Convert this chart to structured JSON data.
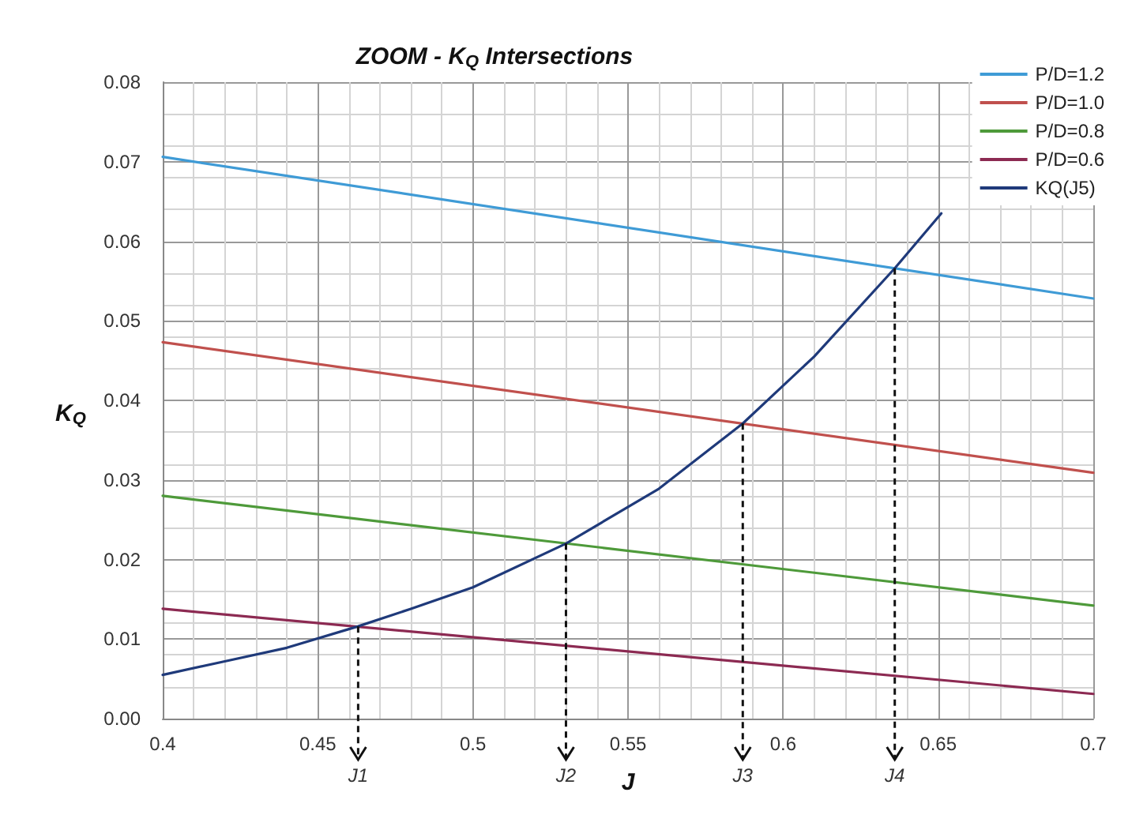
{
  "chart_data": {
    "type": "line",
    "title": "ZOOM - K$_{Q}$ Intersections",
    "xlabel": "J",
    "ylabel": "K$_{Q}$",
    "x": [
      0.4,
      0.7
    ],
    "series": [
      {
        "name": "P/D=1.2",
        "color": "#3f9bd6",
        "values": [
          0.0706,
          0.0528
        ]
      },
      {
        "name": "P/D=1.0",
        "color": "#c0504d",
        "values": [
          0.0473,
          0.0309
        ]
      },
      {
        "name": "P/D=0.8",
        "color": "#4e9a3a",
        "values": [
          0.028,
          0.0142
        ]
      },
      {
        "name": "P/D=0.6",
        "color": "#8c2a52",
        "values": [
          0.0138,
          0.0031
        ]
      },
      {
        "name": "KQ(J5)",
        "color": "#1f3a7a",
        "x": [
          0.4,
          0.42,
          0.44,
          0.463,
          0.48,
          0.5,
          0.53,
          0.56,
          0.587,
          0.61,
          0.636,
          0.651
        ],
        "values": [
          0.0055,
          0.0072,
          0.0089,
          0.0116,
          0.0138,
          0.0165,
          0.022,
          0.0289,
          0.0371,
          0.0455,
          0.0566,
          0.0635
        ]
      }
    ],
    "annotations": [
      {
        "text": "J1",
        "x": 0.463,
        "y": 0.0116
      },
      {
        "text": "J2",
        "x": 0.53,
        "y": 0.022
      },
      {
        "text": "J3",
        "x": 0.587,
        "y": 0.0371
      },
      {
        "text": "J4",
        "x": 0.636,
        "y": 0.0566
      }
    ],
    "xlim": [
      0.4,
      0.7
    ],
    "xticks": [
      0.4,
      0.45,
      0.5,
      0.55,
      0.6,
      0.65,
      0.7
    ],
    "ylim": [
      0,
      0.08
    ],
    "yticks": [
      {
        "value": 0,
        "label": "0.00"
      },
      {
        "value": 0.01,
        "label": "0.01"
      },
      {
        "value": 0.02,
        "label": "0.02"
      },
      {
        "value": 0.03,
        "label": "0.03"
      },
      {
        "value": 0.04,
        "label": "0.04"
      },
      {
        "value": 0.05,
        "label": "0.05"
      },
      {
        "value": 0.06,
        "label": "0.06"
      },
      {
        "value": 0.07,
        "label": "0.07"
      },
      {
        "value": 0.08,
        "label": "0.08"
      }
    ],
    "grid": true,
    "legend": "top right",
    "marker": "none",
    "line_style": "solid"
  }
}
